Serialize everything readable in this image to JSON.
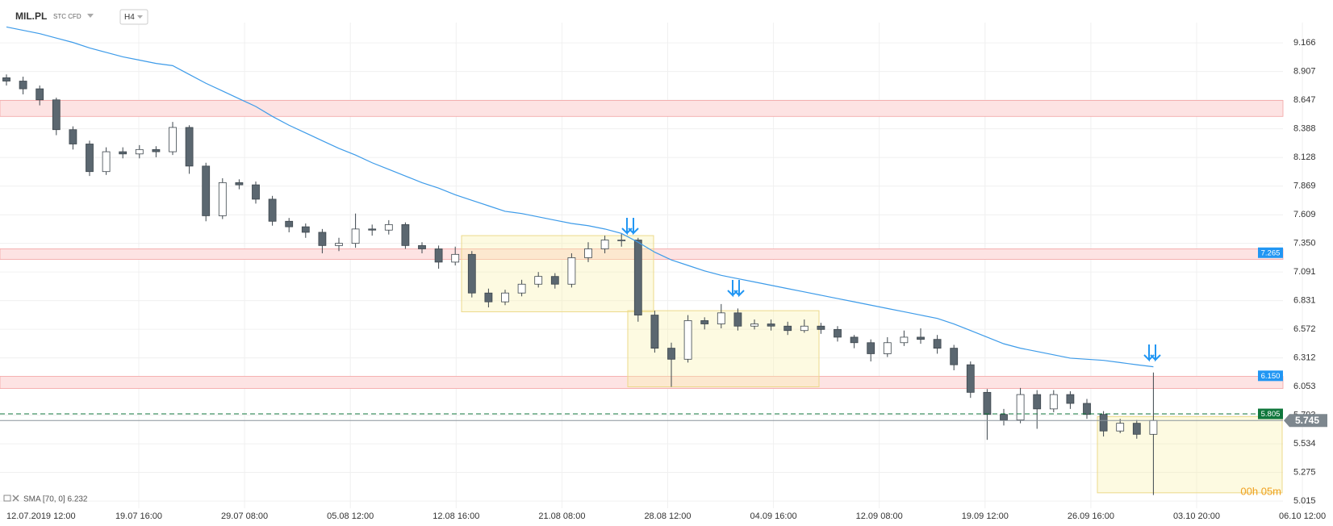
{
  "chart_data": {
    "type": "candlestick",
    "symbol": "MIL.PL",
    "instrument_type": "STC CFD",
    "interval": "H4",
    "indicator_label": "SMA [70, 0] 6.232",
    "countdown": "00h 05m",
    "ylim": [
      4.95,
      9.35
    ],
    "yticks": [
      9.166,
      8.907,
      8.647,
      8.388,
      8.128,
      7.869,
      7.609,
      {
        "value": 7.35,
        "label": "7.350"
      },
      7.091,
      6.831,
      6.572,
      6.312,
      6.053,
      5.793,
      5.534,
      5.275,
      5.015
    ],
    "xtick_labels": [
      "12.07.2019 12:00",
      "19.07 16:00",
      "29.07 08:00",
      "05.08 12:00",
      "12.08 16:00",
      "21.08 08:00",
      "28.08 12:00",
      "04.09 16:00",
      "12.09 08:00",
      "19.09 12:00",
      "26.09 16:00",
      "03.10 20:00",
      "06.10 12:00"
    ],
    "up_color": "#ffffff",
    "down_color": "#5b6770",
    "wick_color": "#3d464d",
    "sma_color": "#3d9be9",
    "open": [
      8.85,
      8.82,
      8.75,
      8.65,
      8.38,
      8.25,
      8.0,
      8.18,
      8.16,
      8.2,
      8.18,
      8.4,
      8.05,
      7.6,
      7.9,
      7.88,
      7.75,
      7.55,
      7.5,
      7.45,
      7.33,
      7.35,
      7.48,
      7.47,
      7.52,
      7.33,
      7.3,
      7.18,
      7.25,
      6.9,
      6.82,
      6.9,
      6.98,
      7.05,
      6.98,
      7.22,
      7.3,
      7.38,
      7.38,
      6.7,
      6.4,
      6.3,
      6.65,
      6.62,
      6.72,
      6.6,
      6.62,
      6.6,
      6.56,
      6.6,
      6.57,
      6.5,
      6.45,
      6.35,
      6.45,
      6.5,
      6.48,
      6.4,
      6.25,
      6.0,
      5.8,
      5.75,
      5.98,
      5.85,
      5.98,
      5.9,
      5.8,
      5.65,
      5.72,
      5.62
    ],
    "high": [
      8.88,
      8.86,
      8.78,
      8.67,
      8.41,
      8.28,
      8.22,
      8.22,
      8.24,
      8.23,
      8.45,
      8.42,
      8.08,
      7.94,
      7.93,
      7.91,
      7.78,
      7.58,
      7.53,
      7.48,
      7.4,
      7.62,
      7.52,
      7.56,
      7.54,
      7.36,
      7.33,
      7.32,
      7.28,
      6.94,
      6.93,
      7.02,
      7.09,
      7.08,
      7.26,
      7.36,
      7.42,
      7.44,
      7.4,
      6.74,
      6.45,
      6.7,
      6.68,
      6.8,
      6.76,
      6.66,
      6.66,
      6.64,
      6.66,
      6.63,
      6.6,
      6.52,
      6.48,
      6.5,
      6.56,
      6.58,
      6.52,
      6.43,
      6.28,
      6.03,
      5.85,
      6.04,
      6.02,
      6.02,
      6.01,
      5.94,
      5.83,
      5.76,
      5.75,
      6.18
    ],
    "low": [
      8.78,
      8.7,
      8.6,
      8.33,
      8.2,
      7.96,
      7.97,
      8.12,
      8.12,
      8.13,
      8.15,
      7.98,
      7.55,
      7.57,
      7.84,
      7.71,
      7.51,
      7.45,
      7.4,
      7.26,
      7.28,
      7.31,
      7.42,
      7.43,
      7.3,
      7.26,
      7.12,
      7.15,
      6.86,
      6.77,
      6.79,
      6.87,
      6.95,
      6.94,
      6.95,
      7.18,
      7.26,
      7.32,
      6.64,
      6.36,
      6.05,
      6.27,
      6.57,
      6.58,
      6.56,
      6.57,
      6.56,
      6.52,
      6.54,
      6.53,
      6.46,
      6.4,
      6.28,
      6.32,
      6.42,
      6.44,
      6.35,
      6.2,
      5.95,
      5.57,
      5.7,
      5.72,
      5.67,
      5.82,
      5.85,
      5.76,
      5.6,
      5.63,
      5.58,
      5.07
    ],
    "close": [
      8.82,
      8.75,
      8.65,
      8.38,
      8.25,
      8.0,
      8.18,
      8.16,
      8.2,
      8.18,
      8.4,
      8.05,
      7.6,
      7.9,
      7.88,
      7.75,
      7.55,
      7.5,
      7.45,
      7.33,
      7.35,
      7.48,
      7.47,
      7.52,
      7.33,
      7.3,
      7.18,
      7.25,
      6.9,
      6.82,
      6.9,
      6.98,
      7.05,
      6.98,
      7.22,
      7.3,
      7.38,
      7.38,
      6.7,
      6.4,
      6.3,
      6.65,
      6.62,
      6.72,
      6.6,
      6.62,
      6.6,
      6.56,
      6.6,
      6.57,
      6.5,
      6.45,
      6.35,
      6.45,
      6.5,
      6.48,
      6.4,
      6.25,
      6.0,
      5.8,
      5.75,
      5.98,
      5.85,
      5.98,
      5.9,
      5.8,
      5.65,
      5.72,
      5.62,
      5.745
    ],
    "sma": [
      9.31,
      9.28,
      9.25,
      9.21,
      9.17,
      9.12,
      9.08,
      9.04,
      9.01,
      8.98,
      8.96,
      8.88,
      8.8,
      8.73,
      8.66,
      8.59,
      8.5,
      8.42,
      8.35,
      8.28,
      8.21,
      8.15,
      8.08,
      8.02,
      7.96,
      7.9,
      7.85,
      7.79,
      7.74,
      7.69,
      7.64,
      7.62,
      7.59,
      7.56,
      7.53,
      7.51,
      7.48,
      7.44,
      7.36,
      7.27,
      7.2,
      7.15,
      7.1,
      7.06,
      7.03,
      7.0,
      6.97,
      6.94,
      6.91,
      6.88,
      6.85,
      6.82,
      6.79,
      6.76,
      6.73,
      6.7,
      6.67,
      6.62,
      6.56,
      6.5,
      6.44,
      6.4,
      6.37,
      6.34,
      6.31,
      6.3,
      6.29,
      6.27,
      6.25,
      6.232
    ],
    "zones": [
      {
        "top": 8.645,
        "bottom": 8.5
      },
      {
        "top": 7.3,
        "bottom": 7.205
      },
      {
        "top": 6.145,
        "bottom": 6.035
      }
    ],
    "boxes": [
      {
        "top": 7.42,
        "bottom": 6.73
      },
      {
        "top": 6.74,
        "bottom": 6.05
      },
      {
        "top": 5.78,
        "bottom": 5.09
      }
    ],
    "price_tags": [
      7.265,
      {
        "value": 6.15,
        "label": "6.150"
      },
      5.805
    ],
    "tag_colors": [
      "#2196f3",
      "#2196f3",
      "#10773c"
    ],
    "last_price": 5.745
  }
}
